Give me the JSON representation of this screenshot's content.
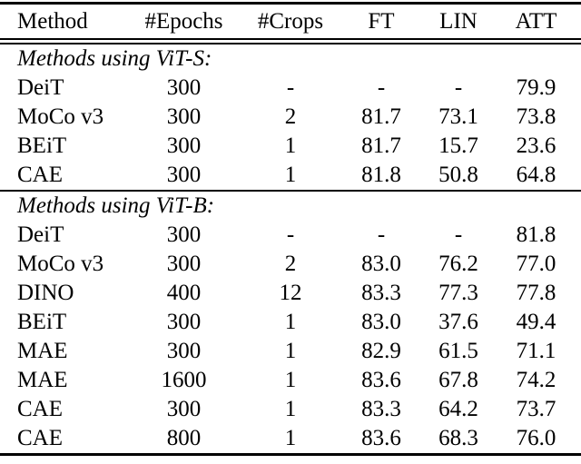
{
  "table": {
    "columns": [
      "Method",
      "#Epochs",
      "#Crops",
      "FT",
      "LIN",
      "ATT"
    ],
    "sections": [
      {
        "label": "Methods using ViT-S:",
        "rows": [
          [
            "DeiT",
            "300",
            "-",
            "-",
            "-",
            "79.9"
          ],
          [
            "MoCo v3",
            "300",
            "2",
            "81.7",
            "73.1",
            "73.8"
          ],
          [
            "BEiT",
            "300",
            "1",
            "81.7",
            "15.7",
            "23.6"
          ],
          [
            "CAE",
            "300",
            "1",
            "81.8",
            "50.8",
            "64.8"
          ]
        ]
      },
      {
        "label": "Methods using ViT-B:",
        "rows": [
          [
            "DeiT",
            "300",
            "-",
            "-",
            "-",
            "81.8"
          ],
          [
            "MoCo v3",
            "300",
            "2",
            "83.0",
            "76.2",
            "77.0"
          ],
          [
            "DINO",
            "400",
            "12",
            "83.3",
            "77.3",
            "77.8"
          ],
          [
            "BEiT",
            "300",
            "1",
            "83.0",
            "37.6",
            "49.4"
          ],
          [
            "MAE",
            "300",
            "1",
            "82.9",
            "61.5",
            "71.1"
          ],
          [
            "MAE",
            "1600",
            "1",
            "83.6",
            "67.8",
            "74.2"
          ],
          [
            "CAE",
            "300",
            "1",
            "83.3",
            "64.2",
            "73.7"
          ],
          [
            "CAE",
            "800",
            "1",
            "83.6",
            "68.3",
            "76.0"
          ]
        ]
      }
    ],
    "colors": {
      "text": "#000000",
      "background": "#ffffff",
      "rule": "#000000"
    }
  }
}
